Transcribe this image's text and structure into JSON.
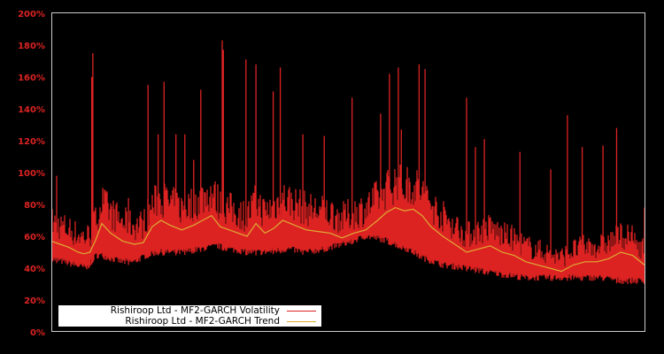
{
  "chart_data": {
    "type": "line",
    "title": "",
    "xlabel": "",
    "ylabel": "",
    "ylim": [
      0,
      200
    ],
    "y_ticks": [
      "0%",
      "20%",
      "40%",
      "60%",
      "80%",
      "100%",
      "120%",
      "140%",
      "160%",
      "180%",
      "200%"
    ],
    "x_ticks": [],
    "grid": false,
    "legend_position": "lower-left",
    "colors": {
      "background": "#000000",
      "frame": "#cccccc",
      "tick_labels": "#dd2222",
      "volatility": "#dd2222",
      "trend": "#ddaa33"
    },
    "series": [
      {
        "name": "Rishiroop Ltd - MF2-GARCH Volatility",
        "color": "#dd2222",
        "x_frac": [
          0.0,
          0.02,
          0.04,
          0.06,
          0.075,
          0.085,
          0.1,
          0.12,
          0.14,
          0.16,
          0.18,
          0.2,
          0.22,
          0.25,
          0.28,
          0.3,
          0.33,
          0.36,
          0.4,
          0.43,
          0.46,
          0.5,
          0.53,
          0.56,
          0.6,
          0.63,
          0.66,
          0.7,
          0.73,
          0.76,
          0.8,
          0.83,
          0.86,
          0.9,
          0.93,
          0.96,
          1.0
        ],
        "floor": [
          44,
          42,
          40,
          38,
          46,
          46,
          44,
          42,
          42,
          46,
          48,
          48,
          48,
          50,
          52,
          50,
          48,
          48,
          50,
          48,
          50,
          54,
          58,
          56,
          50,
          44,
          40,
          38,
          36,
          34,
          32,
          32,
          32,
          32,
          32,
          30,
          30
        ],
        "peaks": [
          {
            "x_frac": 0.009,
            "value": 98
          },
          {
            "x_frac": 0.068,
            "value": 160
          },
          {
            "x_frac": 0.07,
            "value": 175
          },
          {
            "x_frac": 0.13,
            "value": 84
          },
          {
            "x_frac": 0.163,
            "value": 155
          },
          {
            "x_frac": 0.18,
            "value": 124
          },
          {
            "x_frac": 0.19,
            "value": 157
          },
          {
            "x_frac": 0.21,
            "value": 124
          },
          {
            "x_frac": 0.225,
            "value": 124
          },
          {
            "x_frac": 0.24,
            "value": 108
          },
          {
            "x_frac": 0.252,
            "value": 152
          },
          {
            "x_frac": 0.29,
            "value": 177
          },
          {
            "x_frac": 0.288,
            "value": 183
          },
          {
            "x_frac": 0.328,
            "value": 171
          },
          {
            "x_frac": 0.345,
            "value": 168
          },
          {
            "x_frac": 0.374,
            "value": 151
          },
          {
            "x_frac": 0.386,
            "value": 166
          },
          {
            "x_frac": 0.424,
            "value": 124
          },
          {
            "x_frac": 0.46,
            "value": 123
          },
          {
            "x_frac": 0.507,
            "value": 147
          },
          {
            "x_frac": 0.555,
            "value": 137
          },
          {
            "x_frac": 0.57,
            "value": 162
          },
          {
            "x_frac": 0.585,
            "value": 166
          },
          {
            "x_frac": 0.59,
            "value": 127
          },
          {
            "x_frac": 0.62,
            "value": 168
          },
          {
            "x_frac": 0.63,
            "value": 165
          },
          {
            "x_frac": 0.7,
            "value": 147
          },
          {
            "x_frac": 0.715,
            "value": 116
          },
          {
            "x_frac": 0.73,
            "value": 121
          },
          {
            "x_frac": 0.79,
            "value": 113
          },
          {
            "x_frac": 0.842,
            "value": 102
          },
          {
            "x_frac": 0.87,
            "value": 136
          },
          {
            "x_frac": 0.895,
            "value": 116
          },
          {
            "x_frac": 0.93,
            "value": 117
          },
          {
            "x_frac": 0.953,
            "value": 128
          },
          {
            "x_frac": 1.0,
            "value": 78
          }
        ]
      },
      {
        "name": "Rishiroop Ltd - MF2-GARCH Trend",
        "color": "#ddaa33",
        "x_frac": [
          0.0,
          0.015,
          0.03,
          0.045,
          0.055,
          0.065,
          0.075,
          0.085,
          0.1,
          0.12,
          0.14,
          0.155,
          0.17,
          0.185,
          0.2,
          0.22,
          0.24,
          0.255,
          0.27,
          0.285,
          0.3,
          0.315,
          0.33,
          0.345,
          0.36,
          0.375,
          0.39,
          0.41,
          0.43,
          0.45,
          0.47,
          0.49,
          0.51,
          0.53,
          0.55,
          0.565,
          0.58,
          0.595,
          0.61,
          0.625,
          0.64,
          0.66,
          0.68,
          0.7,
          0.72,
          0.74,
          0.76,
          0.78,
          0.8,
          0.82,
          0.84,
          0.86,
          0.88,
          0.9,
          0.92,
          0.94,
          0.96,
          0.98,
          1.0
        ],
        "values": [
          57,
          55,
          53,
          50,
          49,
          50,
          58,
          68,
          62,
          57,
          55,
          56,
          66,
          70,
          67,
          64,
          67,
          70,
          73,
          66,
          64,
          62,
          60,
          68,
          62,
          65,
          70,
          67,
          64,
          63,
          62,
          59,
          62,
          64,
          70,
          75,
          78,
          76,
          77,
          73,
          66,
          60,
          55,
          50,
          52,
          54,
          50,
          48,
          44,
          42,
          40,
          38,
          42,
          44,
          44,
          46,
          50,
          48,
          42
        ]
      }
    ]
  },
  "axes": {
    "y_tick_labels": [
      "200%",
      "180%",
      "160%",
      "140%",
      "120%",
      "100%",
      "80%",
      "60%",
      "40%",
      "20%",
      "0%"
    ]
  },
  "legend": {
    "items": [
      {
        "label": "Rishiroop Ltd - MF2-GARCH Volatility",
        "color": "#dd2222"
      },
      {
        "label": "Rishiroop Ltd - MF2-GARCH Trend",
        "color": "#ddaa33"
      }
    ]
  }
}
